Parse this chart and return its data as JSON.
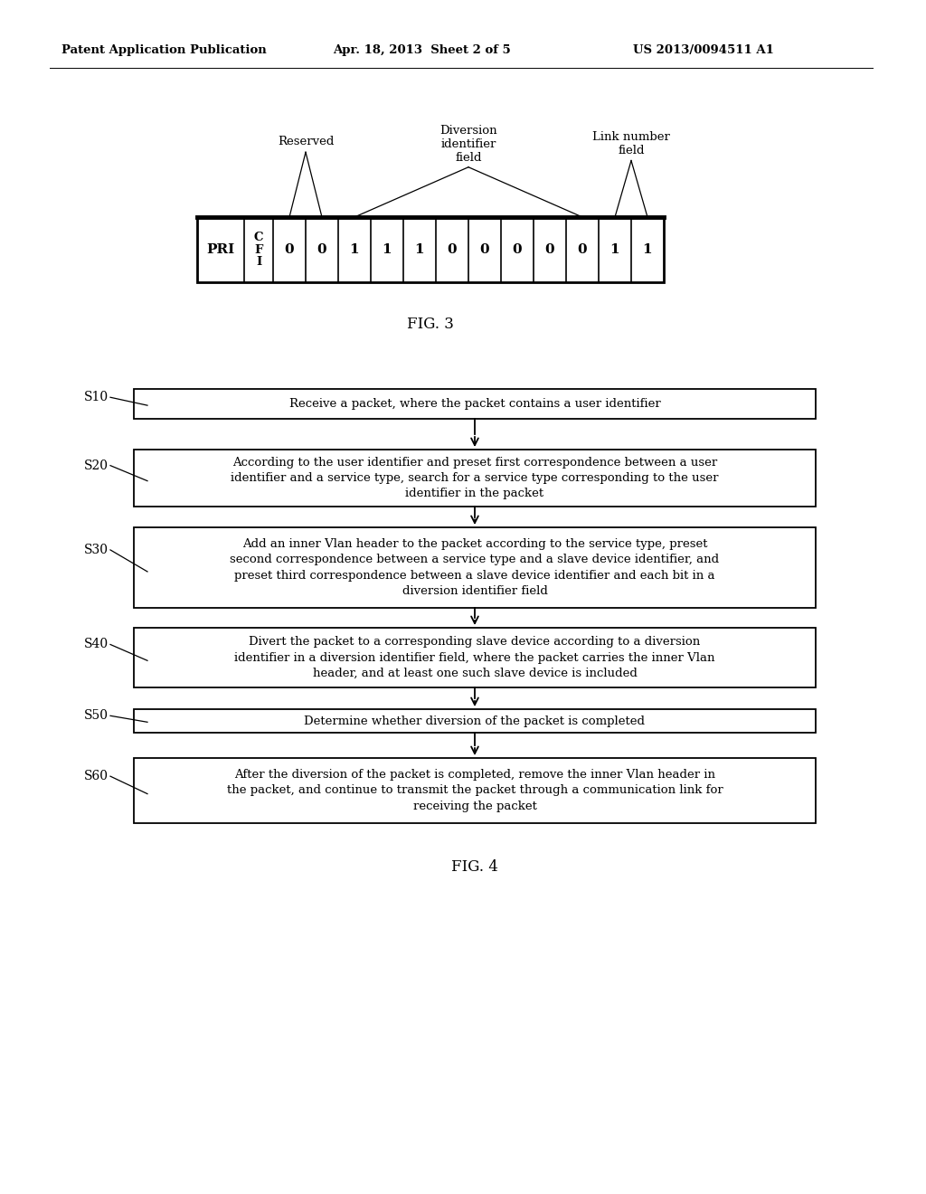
{
  "bg_color": "#ffffff",
  "header_left": "Patent Application Publication",
  "header_mid": "Apr. 18, 2013  Sheet 2 of 5",
  "header_right": "US 2013/0094511 A1",
  "fig3_label": "FIG. 3",
  "fig4_label": "FIG. 4",
  "table_cells": [
    "PRI",
    "C\nF\nI",
    "0",
    "0",
    "1",
    "1",
    "1",
    "0",
    "0",
    "0",
    "0",
    "0",
    "1",
    "1"
  ],
  "flowchart_steps": [
    {
      "id": "S10",
      "text": "Receive a packet, where the packet contains a user identifier",
      "lines": 1
    },
    {
      "id": "S20",
      "text": "According to the user identifier and preset first correspondence between a user\nidentifier and a service type, search for a service type corresponding to the user\nidentifier in the packet",
      "lines": 3
    },
    {
      "id": "S30",
      "text": "Add an inner Vlan header to the packet according to the service type, preset\nsecond correspondence between a service type and a slave device identifier, and\npreset third correspondence between a slave device identifier and each bit in a\ndiversion identifier field",
      "lines": 4
    },
    {
      "id": "S40",
      "text": "Divert the packet to a corresponding slave device according to a diversion\nidentifier in a diversion identifier field, where the packet carries the inner Vlan\nheader, and at least one such slave device is included",
      "lines": 3
    },
    {
      "id": "S50",
      "text": "Determine whether diversion of the packet is completed",
      "lines": 1
    },
    {
      "id": "S60",
      "text": "After the diversion of the packet is completed, remove the inner Vlan header in\nthe packet, and continue to transmit the packet through a communication link for\nreceiving the packet",
      "lines": 3
    }
  ]
}
